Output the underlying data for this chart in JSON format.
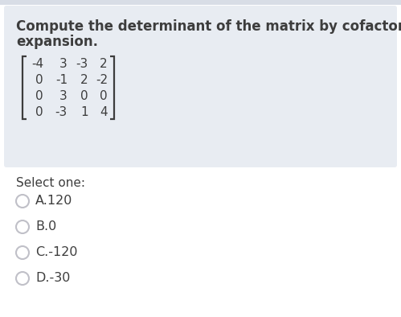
{
  "title_line1": "Compute the determinant of the matrix by cofactor",
  "title_line2": "expansion.",
  "matrix": [
    [
      "-4",
      "3",
      "-3",
      "2"
    ],
    [
      "0",
      "-1",
      "2",
      "-2"
    ],
    [
      "0",
      "3",
      "0",
      "0"
    ],
    [
      "0",
      "-3",
      "1",
      "4"
    ]
  ],
  "select_label": "Select one:",
  "options": [
    "A.120",
    "B.0",
    "C.-120",
    "D.-30"
  ],
  "question_bg": "#e8ecf2",
  "top_bar_color": "#d8dde6",
  "text_color": "#3d3d3d",
  "body_bg": "#ffffff",
  "circle_color": "#c0c0c8",
  "title_fontsize": 12.0,
  "text_fontsize": 11.0,
  "option_fontsize": 11.5,
  "matrix_fontsize": 11.0,
  "select_fontsize": 11.0
}
